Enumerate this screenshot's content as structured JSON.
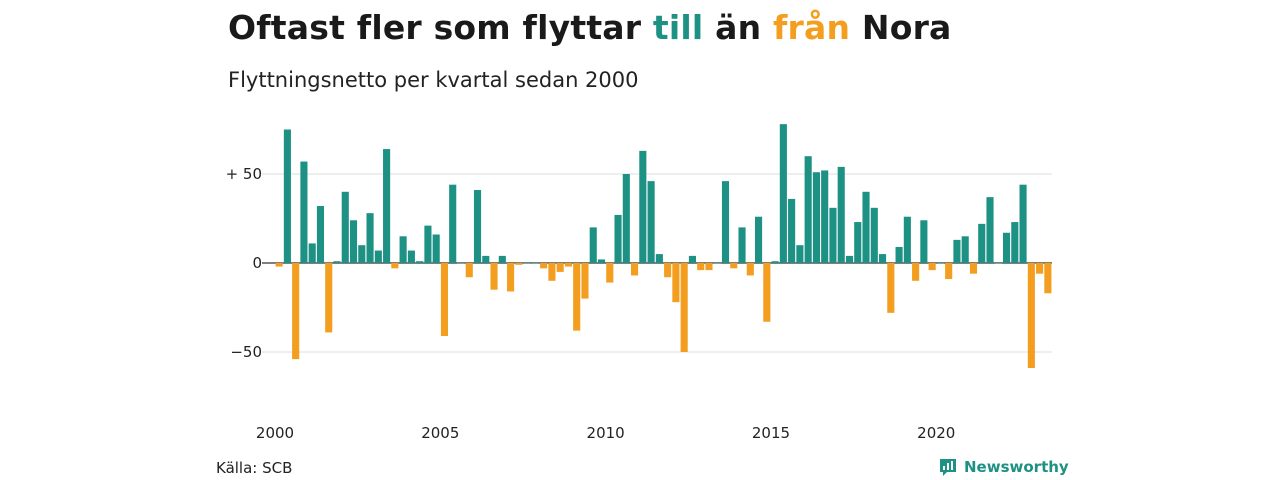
{
  "title": {
    "part1": "Oftast fler som flyttar ",
    "highlight_to": "till",
    "part2": " än ",
    "highlight_from": "från",
    "part3": " Nora"
  },
  "subtitle": "Flyttningsnetto per kvartal sedan 2000",
  "source": "Källa: SCB",
  "brand": {
    "name": "Newsworthy",
    "icon": "newsworthy-logo-icon"
  },
  "colors": {
    "positive": "#1d9183",
    "negative": "#f39e1f",
    "grid": "#dddddd",
    "baseline": "#333333"
  },
  "chart_data": {
    "type": "bar",
    "title": "Oftast fler som flyttar till än från Nora",
    "subtitle": "Flyttningsnetto per kvartal sedan 2000",
    "xlabel": "",
    "ylabel": "",
    "ylim": [
      -60,
      80
    ],
    "yticks": [
      {
        "value": 50,
        "label": "+ 50"
      },
      {
        "value": 0,
        "label": "0"
      },
      {
        "value": -50,
        "label": "−50"
      }
    ],
    "xticks": [
      "2000",
      "2005",
      "2010",
      "2015",
      "2020"
    ],
    "grid": true,
    "start_year": 2000,
    "quarters_per_year": 4,
    "values": [
      -2,
      75,
      -54,
      57,
      11,
      32,
      -39,
      1,
      40,
      24,
      10,
      28,
      7,
      64,
      -3,
      15,
      7,
      1,
      21,
      16,
      -41,
      44,
      0,
      -8,
      41,
      4,
      -15,
      4,
      -16,
      -1,
      0,
      0,
      -3,
      -10,
      -5,
      -2,
      -38,
      -20,
      20,
      2,
      -11,
      27,
      50,
      -7,
      63,
      46,
      5,
      -8,
      -22,
      -50,
      4,
      -4,
      -4,
      0,
      46,
      -3,
      20,
      -7,
      26,
      -33,
      1,
      78,
      36,
      10,
      60,
      51,
      52,
      31,
      54,
      4,
      23,
      40,
      31,
      5,
      -28,
      9,
      26,
      -10,
      24,
      -4,
      0,
      -9,
      13,
      15,
      -6,
      22,
      37,
      0,
      17,
      23,
      44,
      -59,
      -6,
      -17
    ]
  }
}
